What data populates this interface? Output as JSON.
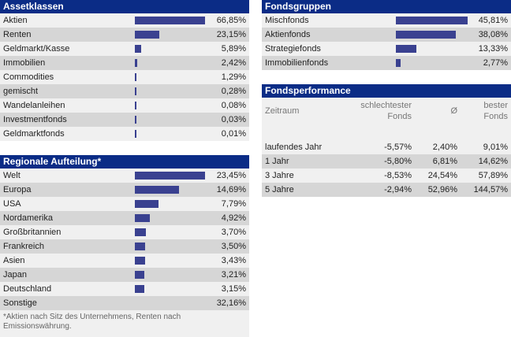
{
  "assetklassen": {
    "title": "Assetklassen",
    "rows": [
      {
        "label": "Aktien",
        "value": "66,85%",
        "pct": 66.85
      },
      {
        "label": "Renten",
        "value": "23,15%",
        "pct": 23.15
      },
      {
        "label": "Geldmarkt/Kasse",
        "value": "5,89%",
        "pct": 5.89
      },
      {
        "label": "Immobilien",
        "value": "2,42%",
        "pct": 2.42
      },
      {
        "label": "Commodities",
        "value": "1,29%",
        "pct": 1.29
      },
      {
        "label": "gemischt",
        "value": "0,28%",
        "pct": 0.28
      },
      {
        "label": "Wandelanleihen",
        "value": "0,08%",
        "pct": 0.08
      },
      {
        "label": "Investmentfonds",
        "value": "0,03%",
        "pct": 0.03
      },
      {
        "label": "Geldmarktfonds",
        "value": "0,01%",
        "pct": 0.01
      }
    ]
  },
  "regionale": {
    "title": "Regionale Aufteilung*",
    "rows": [
      {
        "label": "Welt",
        "value": "23,45%",
        "pct": 23.45
      },
      {
        "label": "Europa",
        "value": "14,69%",
        "pct": 14.69
      },
      {
        "label": "USA",
        "value": "7,79%",
        "pct": 7.79
      },
      {
        "label": "Nordamerika",
        "value": "4,92%",
        "pct": 4.92
      },
      {
        "label": "Großbritannien",
        "value": "3,70%",
        "pct": 3.7
      },
      {
        "label": "Frankreich",
        "value": "3,50%",
        "pct": 3.5
      },
      {
        "label": "Asien",
        "value": "3,43%",
        "pct": 3.43
      },
      {
        "label": "Japan",
        "value": "3,21%",
        "pct": 3.21
      },
      {
        "label": "Deutschland",
        "value": "3,15%",
        "pct": 3.15
      },
      {
        "label": "Sonstige",
        "value": "32,16%",
        "pct": null
      }
    ],
    "footnote": "*Aktien nach Sitz des Unternehmens, Renten nach Emissionswährung."
  },
  "fondsgruppen": {
    "title": "Fondsgruppen",
    "rows": [
      {
        "label": "Mischfonds",
        "value": "45,81%",
        "pct": 45.81
      },
      {
        "label": "Aktienfonds",
        "value": "38,08%",
        "pct": 38.08
      },
      {
        "label": "Strategiefonds",
        "value": "13,33%",
        "pct": 13.33
      },
      {
        "label": "Immobilienfonds",
        "value": "2,77%",
        "pct": 2.77
      }
    ]
  },
  "performance": {
    "title": "Fondsperformance",
    "headers": {
      "zeitraum": "Zeitraum",
      "schlechtester_1": "schlechtester",
      "schlechtester_2": "Fonds",
      "avg": "Ø",
      "bester_1": "bester",
      "bester_2": "Fonds"
    },
    "rows": [
      {
        "period": "laufendes Jahr",
        "worst": "-5,57%",
        "avg": "2,40%",
        "best": "9,01%"
      },
      {
        "period": "1 Jahr",
        "worst": "-5,80%",
        "avg": "6,81%",
        "best": "14,62%"
      },
      {
        "period": "3 Jahre",
        "worst": "-8,53%",
        "avg": "24,54%",
        "best": "57,89%"
      },
      {
        "period": "5 Jahre",
        "worst": "-2,94%",
        "avg": "52,96%",
        "best": "144,57%"
      }
    ]
  },
  "colors": {
    "header_bg": "#0b2c86",
    "bar": "#3a4190",
    "row_light": "#f0f0f0",
    "row_dark": "#d6d6d6"
  }
}
